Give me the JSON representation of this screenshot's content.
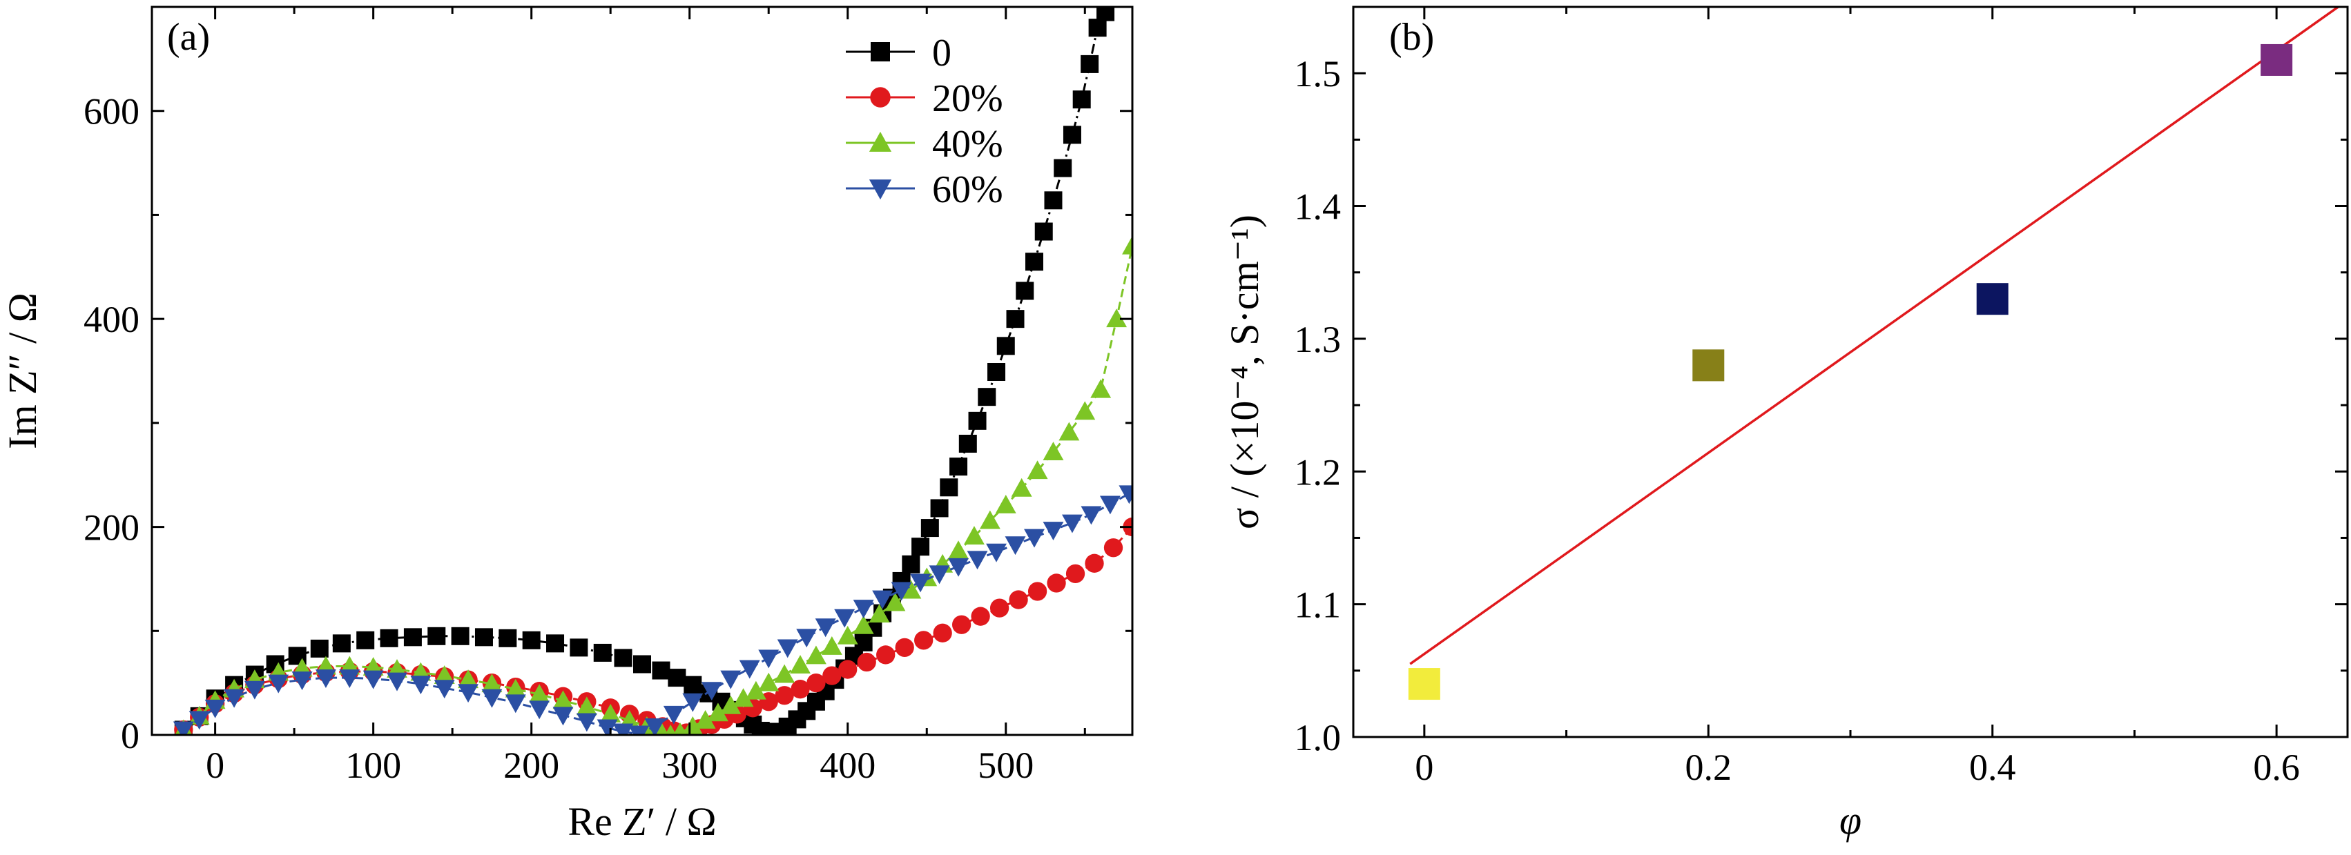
{
  "figure": {
    "panels": [
      "(a)",
      "(b)"
    ]
  },
  "chart_data": [
    {
      "type": "scatter",
      "panel": "(a)",
      "xlabel": "Re Z′ / Ω",
      "ylabel": "Im Z″ / Ω",
      "xlim": [
        -40,
        580
      ],
      "ylim": [
        0,
        700
      ],
      "xticks": [
        0,
        100,
        200,
        300,
        400,
        500
      ],
      "yticks": [
        0,
        200,
        400,
        600
      ],
      "legend_position": "top-right",
      "series": [
        {
          "name": "0",
          "color": "#000000",
          "marker": "square",
          "line": "dash-dot",
          "x": [
            -20,
            -10,
            0,
            12,
            25,
            38,
            52,
            66,
            80,
            95,
            110,
            125,
            140,
            155,
            170,
            185,
            200,
            215,
            230,
            245,
            258,
            270,
            282,
            292,
            302,
            312,
            320,
            328,
            335,
            340,
            345,
            350,
            355,
            362,
            368,
            374,
            380,
            386,
            392,
            398,
            404,
            410,
            416,
            422,
            428,
            434,
            440,
            446,
            452,
            458,
            464,
            470,
            476,
            482,
            488,
            494,
            500,
            506,
            512,
            518,
            524,
            530,
            536,
            542,
            548,
            553,
            558,
            563
          ],
          "y": [
            5,
            18,
            35,
            48,
            58,
            68,
            76,
            83,
            88,
            91,
            93,
            94,
            95,
            95,
            94,
            93,
            91,
            88,
            84,
            79,
            74,
            68,
            62,
            55,
            48,
            40,
            32,
            24,
            16,
            10,
            4,
            2,
            3,
            8,
            15,
            23,
            32,
            42,
            53,
            64,
            76,
            89,
            103,
            117,
            132,
            148,
            164,
            181,
            199,
            218,
            238,
            258,
            280,
            302,
            325,
            349,
            374,
            400,
            427,
            455,
            484,
            514,
            545,
            577,
            611,
            645,
            680,
            695
          ]
        },
        {
          "name": "20%",
          "color": "#e0191d",
          "marker": "circle",
          "line": "dash",
          "x": [
            -20,
            -10,
            0,
            12,
            25,
            40,
            55,
            70,
            85,
            100,
            115,
            130,
            145,
            160,
            175,
            190,
            205,
            220,
            235,
            250,
            262,
            273,
            283,
            290,
            298,
            306,
            314,
            322,
            330,
            340,
            350,
            360,
            370,
            380,
            390,
            400,
            412,
            424,
            436,
            448,
            460,
            472,
            484,
            496,
            508,
            520,
            532,
            544,
            556,
            568,
            580
          ],
          "y": [
            5,
            17,
            30,
            40,
            48,
            54,
            58,
            60,
            61,
            61,
            60,
            58,
            56,
            53,
            50,
            46,
            42,
            37,
            32,
            26,
            20,
            14,
            8,
            4,
            2,
            6,
            10,
            15,
            20,
            26,
            32,
            38,
            44,
            50,
            57,
            63,
            70,
            77,
            84,
            91,
            98,
            106,
            114,
            122,
            130,
            138,
            146,
            155,
            165,
            180,
            200
          ]
        },
        {
          "name": "40%",
          "color": "#7dc525",
          "marker": "triangle-up",
          "line": "dash",
          "x": [
            -20,
            -10,
            0,
            12,
            25,
            40,
            55,
            70,
            85,
            100,
            115,
            130,
            145,
            160,
            175,
            190,
            205,
            220,
            235,
            250,
            262,
            273,
            282,
            288,
            294,
            302,
            310,
            318,
            326,
            334,
            342,
            350,
            360,
            370,
            380,
            390,
            400,
            410,
            420,
            430,
            440,
            450,
            460,
            470,
            480,
            490,
            500,
            510,
            520,
            530,
            540,
            550,
            560,
            570,
            580
          ],
          "y": [
            5,
            18,
            33,
            44,
            53,
            60,
            64,
            66,
            66,
            65,
            63,
            60,
            57,
            53,
            49,
            44,
            39,
            33,
            27,
            20,
            14,
            8,
            3,
            0,
            2,
            8,
            14,
            21,
            28,
            35,
            42,
            50,
            58,
            67,
            76,
            85,
            95,
            105,
            116,
            127,
            139,
            151,
            164,
            177,
            191,
            206,
            221,
            237,
            254,
            272,
            291,
            311,
            332,
            400,
            470
          ]
        },
        {
          "name": "60%",
          "color": "#2b4fa3",
          "marker": "triangle-down",
          "line": "dash",
          "x": [
            -20,
            -10,
            0,
            12,
            25,
            40,
            55,
            70,
            85,
            100,
            115,
            130,
            145,
            160,
            175,
            190,
            205,
            220,
            235,
            248,
            258,
            268,
            278,
            290,
            302,
            314,
            326,
            338,
            350,
            362,
            374,
            386,
            398,
            410,
            422,
            434,
            446,
            458,
            470,
            482,
            494,
            506,
            518,
            530,
            542,
            554,
            566,
            578
          ],
          "y": [
            5,
            15,
            26,
            36,
            44,
            50,
            53,
            55,
            55,
            54,
            52,
            49,
            45,
            41,
            36,
            31,
            25,
            19,
            13,
            7,
            3,
            1,
            8,
            20,
            32,
            43,
            54,
            64,
            74,
            84,
            94,
            104,
            113,
            122,
            131,
            139,
            147,
            155,
            162,
            169,
            176,
            183,
            190,
            197,
            204,
            212,
            222,
            232
          ]
        }
      ]
    },
    {
      "type": "scatter",
      "panel": "(b)",
      "xlabel": "φ",
      "ylabel": "σ / (×10⁻⁴, S·cm⁻¹)",
      "xlim": [
        -0.05,
        0.65
      ],
      "ylim": [
        1.0,
        1.55
      ],
      "xticks": [
        0,
        0.2,
        0.4,
        0.6
      ],
      "yticks": [
        1.0,
        1.1,
        1.2,
        1.3,
        1.4,
        1.5
      ],
      "points": [
        {
          "x": 0,
          "y": 1.04,
          "color": "#f2ec3c"
        },
        {
          "x": 0.2,
          "y": 1.28,
          "color": "#878018"
        },
        {
          "x": 0.4,
          "y": 1.33,
          "color": "#0c1560"
        },
        {
          "x": 0.6,
          "y": 1.51,
          "color": "#7a2c80"
        }
      ],
      "fit": {
        "color": "#e0191d",
        "from": [
          -0.01,
          1.055
        ],
        "to": [
          0.65,
          1.555
        ]
      }
    }
  ]
}
